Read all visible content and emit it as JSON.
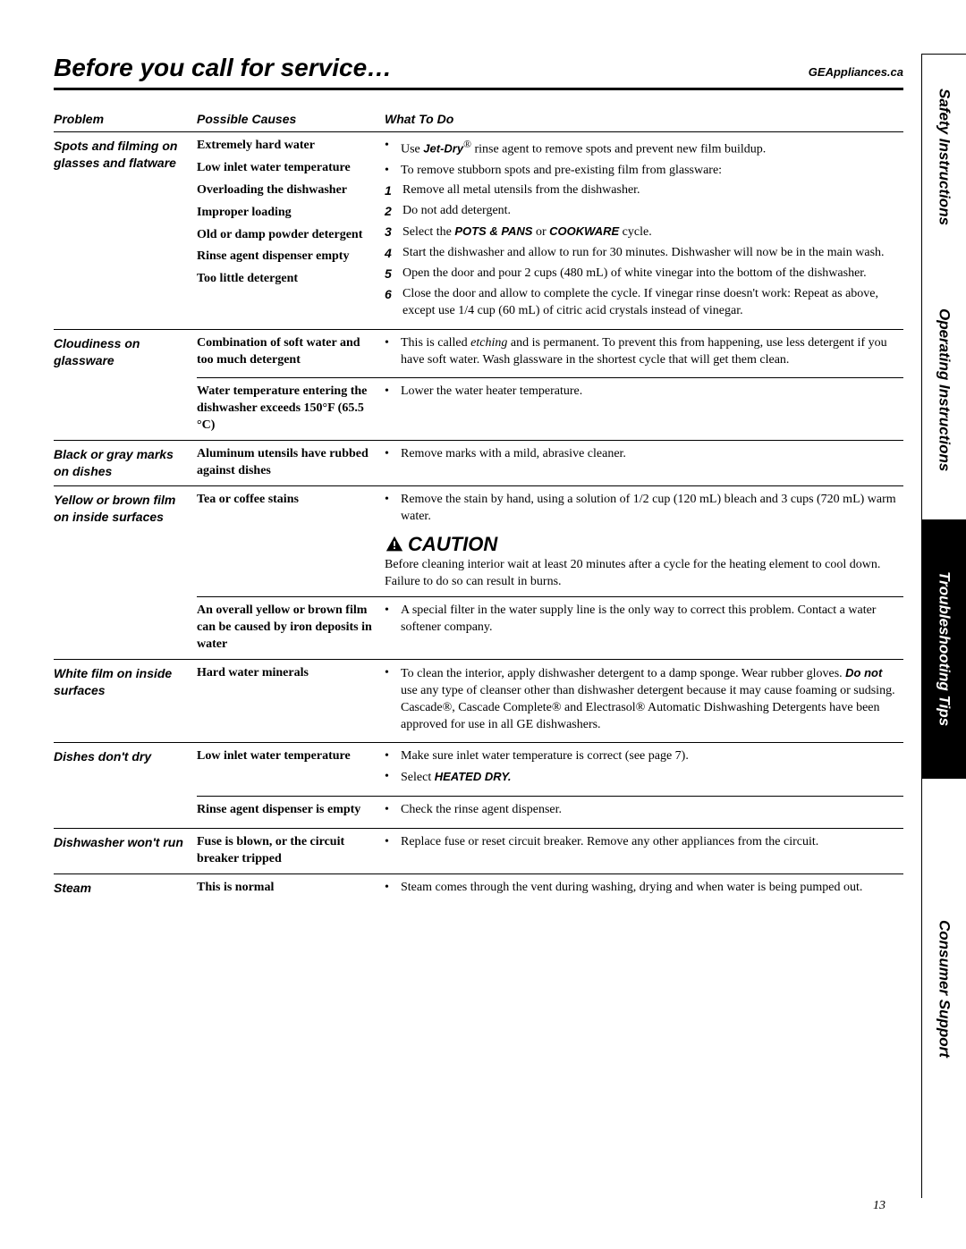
{
  "header": {
    "title": "Before you call for service…",
    "brand": "GEAppliances.ca"
  },
  "columns": {
    "problem": "Problem",
    "cause": "Possible Causes",
    "todo": "What To Do"
  },
  "rows": {
    "spots": {
      "problem": "Spots and filming on glasses and flatware",
      "causes": [
        "Extremely hard water",
        "Low inlet water temperature",
        "Overloading the dishwasher",
        "Improper loading",
        "Old or damp powder detergent",
        "Rinse agent dispenser empty",
        "Too little detergent"
      ],
      "todo_bullets": [
        {
          "pre": "Use ",
          "b": "Jet-Dry",
          "sup": "®",
          "post": " rinse agent to remove spots and prevent new film buildup."
        },
        {
          "text": "To remove stubborn spots and pre-existing film from glassware:"
        }
      ],
      "todo_steps": [
        "Remove all metal utensils from the dishwasher.",
        "Do not add detergent.",
        {
          "pre": "Select the ",
          "b": "POTS & PANS",
          "mid": " or ",
          "b2": "COOKWARE",
          "post": " cycle."
        },
        "Start the dishwasher and allow to run for 30 minutes. Dishwasher will now be in the main wash.",
        "Open the door and pour 2 cups (480 mL) of white vinegar into the bottom of the dishwasher.",
        "Close the door and allow to complete the cycle. If vinegar rinse doesn't work: Repeat as above, except use 1/4 cup (60 mL) of citric acid crystals instead of vinegar."
      ]
    },
    "cloudiness": {
      "problem": "Cloudiness on glassware",
      "cause1": "Combination of soft water and too much detergent",
      "todo1_pre": "This is called ",
      "todo1_i": "etching",
      "todo1_post": " and is permanent. To prevent this from happening, use less detergent if you have soft water. Wash glassware in the shortest cycle that will get them clean.",
      "cause2": "Water temperature entering the dishwasher exceeds 150°F (65.5 °C)",
      "todo2": "Lower the water heater temperature."
    },
    "blackgray": {
      "problem": "Black or gray marks on dishes",
      "cause": "Aluminum utensils have rubbed against dishes",
      "todo": "Remove marks with a mild, abrasive cleaner."
    },
    "yellowbrown": {
      "problem": "Yellow or brown film on inside surfaces",
      "cause1": "Tea or coffee stains",
      "todo1": "Remove the stain by hand, using a solution of 1/2 cup (120 mL) bleach and 3 cups (720 mL) warm water.",
      "caution_label": "CAUTION",
      "caution_text": "Before cleaning interior wait at least 20 minutes after a cycle for the heating element to cool down. Failure to do so can result in burns.",
      "cause2": "An overall yellow or brown film can be caused by iron deposits in water",
      "todo2": "A special filter in the water supply line is the only way to correct this problem. Contact a water softener company."
    },
    "whitefilm": {
      "problem": "White film on inside surfaces",
      "cause": "Hard water minerals",
      "todo_pre": "To clean the interior, apply dishwasher detergent to a damp sponge. Wear rubber gloves. ",
      "todo_b": "Do not",
      "todo_post": " use any type of cleanser other than dishwasher detergent because it may cause foaming or sudsing. Cascade®, Cascade Complete® and Electrasol® Automatic Dishwashing Detergents have been approved for use in all GE dishwashers."
    },
    "dontdry": {
      "problem": "Dishes don't dry",
      "cause1": "Low inlet water temperature",
      "todo1": "Make sure inlet water temperature is correct (see page 7).",
      "todo1b_pre": "Select ",
      "todo1b_b": "HEATED DRY.",
      "cause2": "Rinse agent dispenser is empty",
      "todo2": "Check the rinse agent dispenser."
    },
    "wontrun": {
      "problem": "Dishwasher won't run",
      "cause": "Fuse is blown, or the circuit breaker tripped",
      "todo": "Replace fuse or reset circuit breaker. Remove any other appliances from the circuit."
    },
    "steam": {
      "problem": "Steam",
      "cause": "This is normal",
      "todo": "Steam comes through the vent during washing, drying and when water is being pumped out."
    }
  },
  "page_number": "13",
  "tabs": {
    "safety": "Safety Instructions",
    "operating": "Operating Instructions",
    "troubleshooting": "Troubleshooting Tips",
    "consumer": "Consumer Support"
  },
  "tab_heights": {
    "safety": 230,
    "operating": 290,
    "troubleshooting": 290,
    "consumer": 470
  }
}
